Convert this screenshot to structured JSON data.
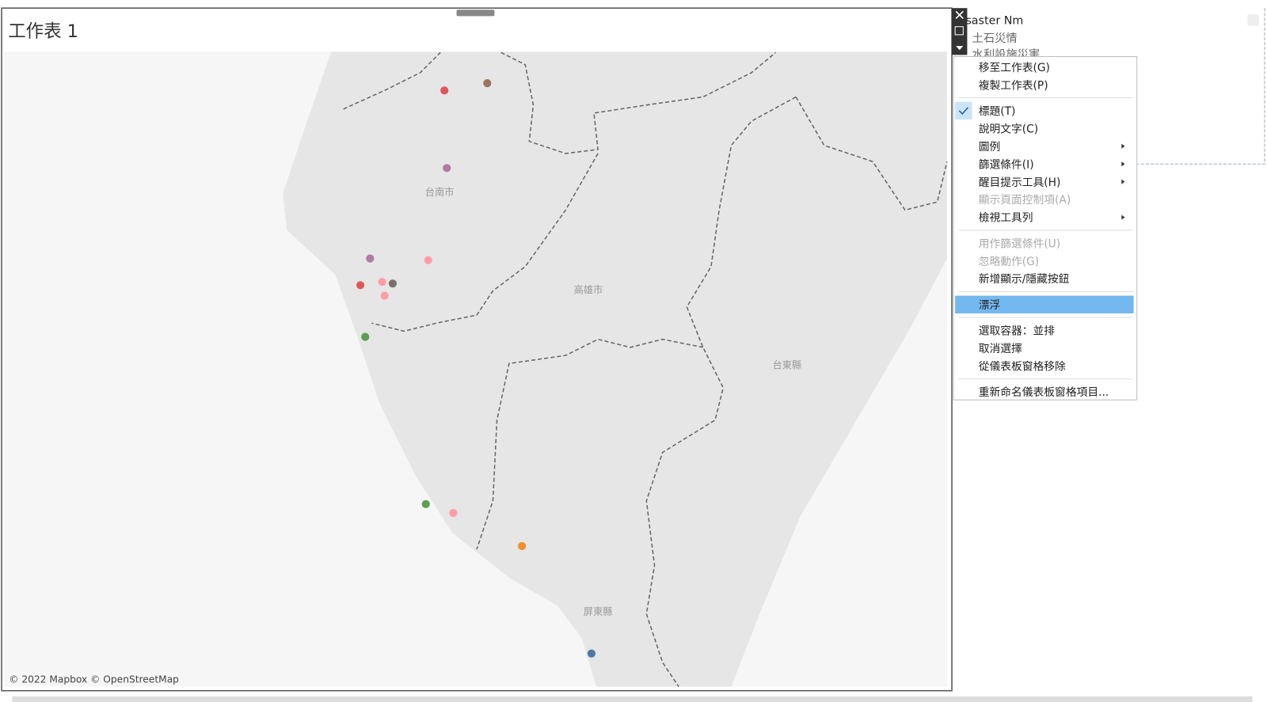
{
  "worksheet": {
    "title": "工作表 1",
    "attribution": "© 2022 Mapbox © OpenStreetMap",
    "map_labels": [
      "台南市",
      "高雄市",
      "台東縣",
      "屏東縣"
    ]
  },
  "legend": {
    "title": "saster Nm",
    "items": [
      "土石災情",
      "水利設施災害"
    ]
  },
  "menu": {
    "groups": [
      [
        {
          "label": "移至工作表(G)"
        },
        {
          "label": "複製工作表(P)"
        }
      ],
      [
        {
          "label": "標題(T)",
          "checked": true
        },
        {
          "label": "說明文字(C)"
        },
        {
          "label": "圖例",
          "submenu": true
        },
        {
          "label": "篩選條件(I)",
          "submenu": true
        },
        {
          "label": "醒目提示工具(H)",
          "submenu": true
        },
        {
          "label": "顯示頁面控制項(A)",
          "disabled": true
        },
        {
          "label": "檢視工具列",
          "submenu": true
        }
      ],
      [
        {
          "label": "用作篩選條件(U)",
          "disabled": true
        },
        {
          "label": "忽略動作(G)",
          "disabled": true
        },
        {
          "label": "新增顯示/隱藏按鈕"
        }
      ],
      [
        {
          "label": "漂浮",
          "highlighted": true
        }
      ],
      [
        {
          "label": "選取容器：並排"
        },
        {
          "label": "取消選擇"
        },
        {
          "label": "從儀表板窗格移除"
        }
      ],
      [
        {
          "label": "重新命名儀表板窗格項目..."
        }
      ]
    ]
  }
}
